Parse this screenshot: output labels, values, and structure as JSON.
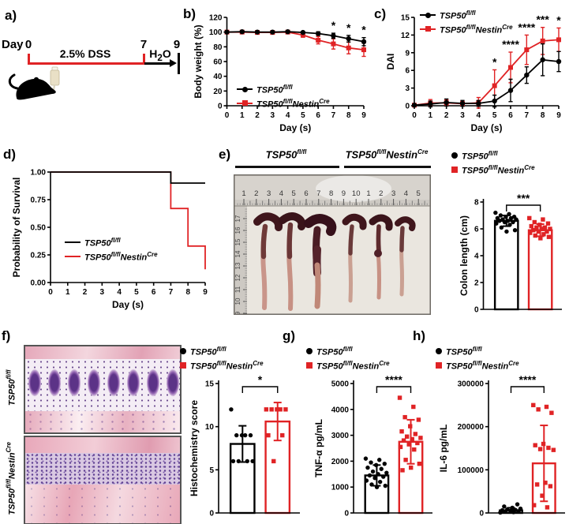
{
  "panel_letters": {
    "a": "a)",
    "b": "b)",
    "c": "c)",
    "d": "d)",
    "e": "e)",
    "f": "f)",
    "g": "g)",
    "h": "h)"
  },
  "groups": {
    "control": {
      "label": "TSP50^{fl/fl}",
      "color": "#000000",
      "marker": "circle"
    },
    "mutant": {
      "label": "TSP50^{fl/fl}Nestin^{Cre}",
      "color": "#e02325",
      "marker": "square"
    }
  },
  "timeline": {
    "day_label": "Day",
    "start": "0",
    "mid": "7",
    "end": "9",
    "dss_label": "2.5% DSS",
    "water_label": "H_{2}O",
    "dss_color": "#e02325"
  },
  "photo": {
    "group1_label": "TSP50^{fl/fl}",
    "group2_label": "TSP50^{fl/fl}Nestin^{Cre}",
    "ruler_top": [
      "1",
      "2",
      "3",
      "4",
      "5",
      "6",
      "7",
      "8",
      "9",
      "10",
      "1",
      "2",
      "3",
      "4",
      "5"
    ],
    "ruler_top_red_index": 9,
    "ruler_side": [
      "17",
      "16",
      "15",
      "14",
      "13",
      "12",
      "11",
      "10",
      "9"
    ]
  },
  "micrographs": {
    "top_label": "TSP50^{fl/fl}",
    "bottom_label": "TSP50^{fl/fl}Nestin^{Cre}"
  },
  "chart_data": [
    {
      "id": "body-weight",
      "type": "line",
      "title": "",
      "xlabel": "Day (s)",
      "ylabel": "Body weight (%)",
      "xlim": [
        0,
        9
      ],
      "ylim": [
        0,
        120
      ],
      "xticks": [
        0,
        1,
        2,
        3,
        4,
        5,
        6,
        7,
        8,
        9
      ],
      "yticks": [
        "0",
        "20",
        "40",
        "60",
        "80",
        "100",
        "120"
      ],
      "legend_pos": "bottom-left",
      "series": [
        {
          "group": "control",
          "values": [
            100,
            100.5,
            100,
            100,
            100.5,
            99.5,
            98,
            95,
            91,
            87
          ],
          "errors": [
            0.5,
            0.8,
            0.8,
            0.8,
            0.8,
            1.5,
            2.5,
            3.5,
            4.5,
            5.5
          ]
        },
        {
          "group": "mutant",
          "values": [
            100,
            100,
            99.5,
            99.5,
            100,
            96,
            89,
            84,
            78.5,
            76
          ],
          "errors": [
            0.5,
            0.8,
            1,
            1,
            1,
            3,
            5,
            7,
            8,
            9
          ]
        }
      ],
      "annotations": [
        {
          "x": 7,
          "text": "*"
        },
        {
          "x": 8,
          "text": "*"
        },
        {
          "x": 9,
          "text": "*"
        }
      ]
    },
    {
      "id": "dai",
      "type": "line",
      "title": "",
      "xlabel": "Day (s)",
      "ylabel": "DAI",
      "xlim": [
        0,
        9
      ],
      "ylim": [
        0,
        15
      ],
      "xticks": [
        0,
        1,
        2,
        3,
        4,
        5,
        6,
        7,
        8,
        9
      ],
      "yticks": [
        "0",
        "3",
        "6",
        "9",
        "12",
        "15"
      ],
      "legend_pos": "top-left",
      "series": [
        {
          "group": "control",
          "values": [
            0.1,
            0.3,
            0.55,
            0.4,
            0.4,
            0.8,
            2.6,
            5.2,
            7.8,
            7.5
          ],
          "errors": [
            0.1,
            0.5,
            0.6,
            0.5,
            0.5,
            1.0,
            1.9,
            1.4,
            2.7,
            1.7
          ]
        },
        {
          "group": "mutant",
          "values": [
            0.1,
            0.45,
            0.5,
            0.35,
            0.5,
            3.4,
            6.5,
            9.5,
            11.0,
            11.2
          ],
          "errors": [
            0.1,
            0.6,
            0.5,
            0.4,
            0.9,
            2.7,
            2.6,
            2.5,
            2.3,
            2.0
          ]
        }
      ],
      "annotations": [
        {
          "x": 5,
          "text": "*"
        },
        {
          "x": 6,
          "text": "****"
        },
        {
          "x": 7,
          "text": "****"
        },
        {
          "x": 8,
          "text": "***"
        },
        {
          "x": 9,
          "text": "*"
        }
      ]
    },
    {
      "id": "survival",
      "type": "step",
      "title": "",
      "xlabel": "Day (s)",
      "ylabel": "Probability of Survival",
      "xlim": [
        0,
        9
      ],
      "ylim": [
        0,
        1
      ],
      "xticks": [
        0,
        1,
        2,
        3,
        4,
        5,
        6,
        7,
        8,
        9
      ],
      "yticks": [
        "0.00",
        "0.25",
        "0.50",
        "0.75",
        "1.00"
      ],
      "legend_pos": "bottom-left",
      "series": [
        {
          "group": "control",
          "points": [
            [
              0,
              1
            ],
            [
              7,
              1
            ],
            [
              7,
              0.9
            ],
            [
              9,
              0.9
            ]
          ]
        },
        {
          "group": "mutant",
          "points": [
            [
              0,
              1
            ],
            [
              7,
              1
            ],
            [
              7,
              0.67
            ],
            [
              8,
              0.67
            ],
            [
              8,
              0.33
            ],
            [
              9,
              0.33
            ],
            [
              9,
              0.12
            ]
          ]
        }
      ]
    },
    {
      "id": "colon-length",
      "type": "bar",
      "title": "",
      "ylabel": "Colon length (cm)",
      "ylim": [
        0,
        8
      ],
      "yticks": [
        "0",
        "2",
        "4",
        "6",
        "8"
      ],
      "significance": "***",
      "bars": [
        {
          "group": "control",
          "mean": 6.6,
          "sd": 0.4,
          "points": [
            7.2,
            7.1,
            7.0,
            6.9,
            6.9,
            6.8,
            6.8,
            6.7,
            6.7,
            6.6,
            6.6,
            6.5,
            6.5,
            6.4,
            6.3,
            6.1,
            5.9,
            5.8
          ]
        },
        {
          "group": "mutant",
          "mean": 5.9,
          "sd": 0.45,
          "points": [
            6.8,
            6.7,
            6.5,
            6.4,
            6.3,
            6.2,
            6.1,
            6.1,
            6.0,
            6.0,
            5.9,
            5.8,
            5.8,
            5.7,
            5.6,
            5.5,
            5.4,
            5.3
          ]
        }
      ]
    },
    {
      "id": "histochemistry",
      "type": "bar",
      "title": "",
      "ylabel": "Histochemistry score",
      "ylim": [
        0,
        15
      ],
      "yticks": [
        "0",
        "5",
        "10",
        "15"
      ],
      "significance": "*",
      "bars": [
        {
          "group": "control",
          "mean": 8,
          "sd": 2.1,
          "points": [
            12,
            9,
            9,
            9,
            9,
            6,
            6,
            6,
            6
          ]
        },
        {
          "group": "mutant",
          "mean": 10.6,
          "sd": 2.2,
          "points": [
            12,
            12,
            12,
            12,
            12,
            9,
            9,
            6
          ]
        }
      ]
    },
    {
      "id": "tnf",
      "type": "bar",
      "title": "",
      "ylabel": "TNF-α pg/mL",
      "ylim": [
        0,
        5000
      ],
      "yticks": [
        "0",
        "1000",
        "2000",
        "3000",
        "4000",
        "5000"
      ],
      "significance": "****",
      "bars": [
        {
          "group": "control",
          "mean": 1450,
          "sd": 400,
          "points": [
            2100,
            2050,
            1950,
            1900,
            1850,
            1750,
            1700,
            1600,
            1550,
            1500,
            1450,
            1400,
            1350,
            1250,
            1200,
            1100,
            1050,
            1000
          ]
        },
        {
          "group": "mutant",
          "mean": 2750,
          "sd": 850,
          "points": [
            4450,
            4100,
            3700,
            3600,
            3350,
            3150,
            3050,
            2950,
            2900,
            2850,
            2800,
            2700,
            2650,
            2550,
            2450,
            2050,
            1900,
            1750,
            1650
          ]
        }
      ]
    },
    {
      "id": "il6",
      "type": "bar",
      "title": "",
      "ylabel": "IL-6 pg/mL",
      "ylim": [
        0,
        300000
      ],
      "yticks": [
        "0",
        "100000",
        "200000",
        "300000"
      ],
      "significance": "****",
      "bars": [
        {
          "group": "control",
          "mean": 6000,
          "sd": 6000,
          "points": [
            1000,
            2000,
            3000,
            4000,
            5000,
            6000,
            7000,
            8000,
            10000,
            12000,
            15000,
            20000
          ]
        },
        {
          "group": "mutant",
          "mean": 115000,
          "sd": 88000,
          "points": [
            250000,
            246000,
            240000,
            232000,
            160000,
            157000,
            151000,
            148000,
            146000,
            70000,
            66000,
            62000,
            40000,
            18000,
            13000
          ]
        }
      ]
    }
  ]
}
